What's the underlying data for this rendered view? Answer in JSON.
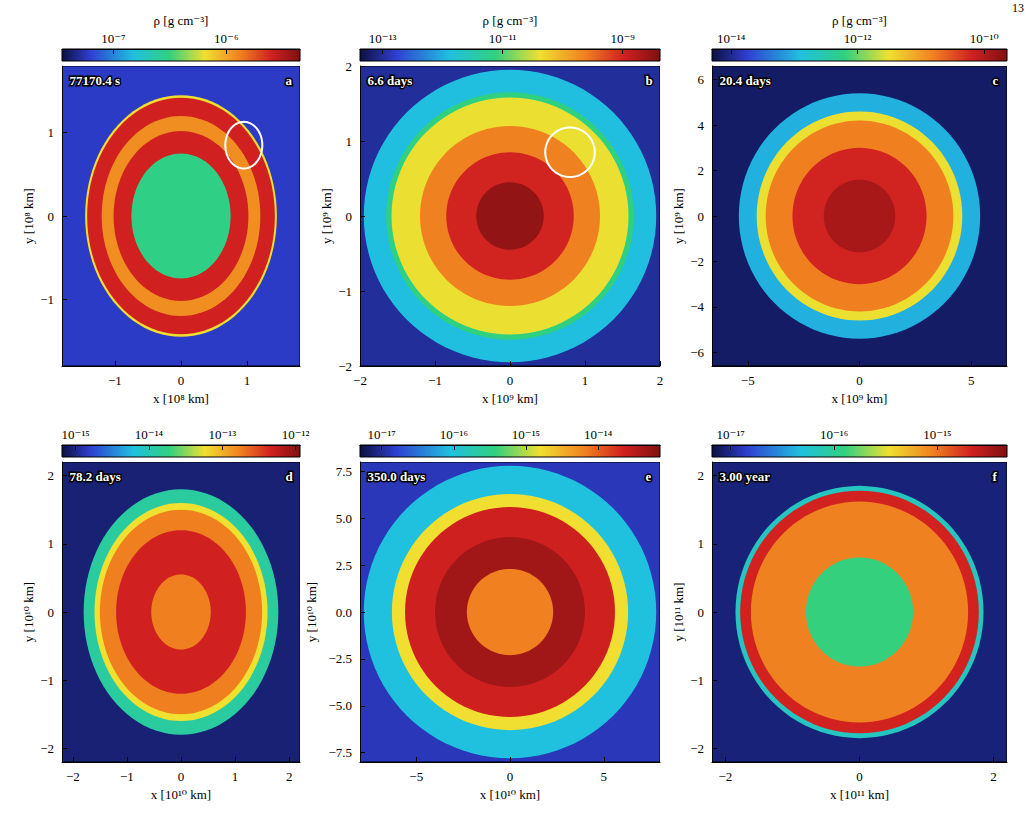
{
  "page_number": "13",
  "chart_data": [
    {
      "type": "density_map",
      "panel": "a",
      "time": "77170.4 s",
      "x_label": "x [10⁸ km]",
      "y_label": "y [10⁸ km]",
      "xlim": [
        -1.8,
        1.8
      ],
      "ylim": [
        -1.8,
        1.8
      ],
      "xticks": [
        {
          "value": -1,
          "label": "−1"
        },
        0,
        1
      ],
      "yticks": [
        {
          "value": -1,
          "label": "−1"
        },
        0,
        1
      ],
      "colorbar": {
        "label": "ρ [g cm⁻³]",
        "log": true,
        "range": [
          3.5e-08,
          4.5e-06
        ],
        "ticks": [
          {
            "value": 1e-07,
            "label": "10⁻⁷"
          },
          {
            "value": 1e-06,
            "label": "10⁻⁶"
          }
        ]
      },
      "ambient_density": 6e-08,
      "shells": {
        "radius": [
          1.45,
          1.42,
          1.2,
          1.02,
          0.75
        ],
        "density": [
          6.5e-07,
          2.5e-06,
          1.2e-06,
          2.5e-06,
          3e-07
        ]
      },
      "highlight_circle": {
        "center": [
          0.95,
          0.85
        ],
        "radius": 0.28
      }
    },
    {
      "type": "density_map",
      "panel": "b",
      "time": "6.6 days",
      "x_label": "x [10⁹ km]",
      "y_label": "y [10⁹ km]",
      "xlim": [
        -2,
        2
      ],
      "ylim": [
        -2,
        2
      ],
      "xticks": [
        {
          "value": -2,
          "label": "−2"
        },
        {
          "value": -1,
          "label": "−1"
        },
        0,
        1,
        2
      ],
      "yticks": [
        {
          "value": -2,
          "label": "−2"
        },
        {
          "value": -1,
          "label": "−1"
        },
        0,
        1,
        2
      ],
      "colorbar": {
        "label": "ρ [g cm⁻³]",
        "log": true,
        "range": [
          4.2e-14,
          4.2e-09
        ],
        "ticks": [
          {
            "value": 1e-13,
            "label": "10⁻¹³"
          },
          {
            "value": 1e-11,
            "label": "10⁻¹¹"
          },
          {
            "value": 1e-09,
            "label": "10⁻⁹"
          }
        ]
      },
      "ambient_density": 1e-13,
      "shells": {
        "radius": [
          1.95,
          1.65,
          1.58,
          1.2,
          0.85,
          0.45
        ],
        "density": [
          1.3e-12,
          7.4e-12,
          4e-11,
          2.3e-10,
          1e-09,
          3e-09
        ]
      },
      "highlight_circle": {
        "center": [
          0.8,
          0.85
        ],
        "radius": 0.33
      }
    },
    {
      "type": "density_map",
      "panel": "c",
      "time": "20.4 days",
      "x_label": "x [10⁹ km]",
      "y_label": "y [10⁹ km]",
      "xlim": [
        -6.6,
        6.6
      ],
      "ylim": [
        -6.6,
        6.6
      ],
      "xticks": [
        {
          "value": -5,
          "label": "−5"
        },
        0,
        5
      ],
      "yticks": [
        {
          "value": -6,
          "label": "−6"
        },
        {
          "value": -4,
          "label": "−4"
        },
        {
          "value": -2,
          "label": "−2"
        },
        0,
        2,
        4,
        6
      ],
      "colorbar": {
        "label": "ρ [g cm⁻³]",
        "log": true,
        "range": [
          5e-15,
          2.3e-10
        ],
        "ticks": [
          {
            "value": 1e-14,
            "label": "10⁻¹⁴"
          },
          {
            "value": 1e-12,
            "label": "10⁻¹²"
          },
          {
            "value": 1e-10,
            "label": "10⁻¹⁰"
          }
        ]
      },
      "ambient_density": 7e-15,
      "shells": {
        "radius": [
          5.4,
          4.6,
          4.2,
          3.0,
          1.6
        ],
        "density": [
          1e-13,
          3e-12,
          1.6e-11,
          6e-11,
          1.2e-10
        ]
      }
    },
    {
      "type": "density_map",
      "panel": "d",
      "time": "78.2 days",
      "x_label": "x [10¹⁰ km]",
      "y_label": "y [10¹⁰ km]",
      "xlim": [
        -2.2,
        2.2
      ],
      "ylim": [
        -2.2,
        2.2
      ],
      "xticks": [
        {
          "value": -2,
          "label": "−2"
        },
        {
          "value": -1,
          "label": "−1"
        },
        0,
        1,
        2
      ],
      "yticks": [
        {
          "value": -2,
          "label": "−2"
        },
        {
          "value": -1,
          "label": "−1"
        },
        0,
        1,
        2
      ],
      "colorbar": {
        "log": true,
        "range": [
          6.5e-16,
          1.15e-12
        ],
        "ticks": [
          {
            "value": 1e-15,
            "label": "10⁻¹⁵"
          },
          {
            "value": 1e-14,
            "label": "10⁻¹⁴"
          },
          {
            "value": 1e-13,
            "label": "10⁻¹³"
          },
          {
            "value": 1e-12,
            "label": "10⁻¹²"
          }
        ]
      },
      "ambient_density": 9e-16,
      "shells": {
        "radius": [
          1.8,
          1.6,
          1.5,
          1.2,
          0.55
        ],
        "density": [
          1.3e-14,
          5.8e-14,
          1.8e-13,
          4.7e-13,
          1.8e-13
        ]
      }
    },
    {
      "type": "density_map",
      "panel": "e",
      "time": "350.0 days",
      "x_label": "x [10¹⁰ km]",
      "y_label": "y [10¹⁰ km]",
      "xlim": [
        -8,
        8
      ],
      "ylim": [
        -8,
        8
      ],
      "xticks": [
        {
          "value": -5,
          "label": "−5"
        },
        0,
        5
      ],
      "yticks": [
        {
          "value": -7.5,
          "label": "−7.5"
        },
        {
          "value": -5,
          "label": "−5.0"
        },
        {
          "value": -2.5,
          "label": "−2.5"
        },
        {
          "value": 0,
          "label": "0.0"
        },
        2.5,
        {
          "value": 5,
          "label": "5.0"
        },
        7.5
      ],
      "colorbar": {
        "log": true,
        "range": [
          5e-18,
          7.2e-14
        ],
        "ticks": [
          {
            "value": 1e-17,
            "label": "10⁻¹⁷"
          },
          {
            "value": 1e-16,
            "label": "10⁻¹⁶"
          },
          {
            "value": 1e-15,
            "label": "10⁻¹⁵"
          },
          {
            "value": 1e-14,
            "label": "10⁻¹⁴"
          }
        ]
      },
      "ambient_density": 1.3e-17,
      "shells": {
        "radius": [
          7.8,
          6.3,
          5.6,
          4.0,
          2.3
        ],
        "density": [
          9e-17,
          1.6e-15,
          2.3e-14,
          4.5e-14,
          6.6e-15
        ]
      }
    },
    {
      "type": "density_map",
      "panel": "f",
      "time": "3.00 year",
      "x_label": "x [10¹¹ km]",
      "y_label": "y [10¹¹ km]",
      "xlim": [
        -2.2,
        2.2
      ],
      "ylim": [
        -2.2,
        2.2
      ],
      "xticks": [
        {
          "value": -2,
          "label": "−2"
        },
        0,
        2
      ],
      "yticks": [
        {
          "value": -2,
          "label": "−2"
        },
        {
          "value": -1,
          "label": "−1"
        },
        0,
        1,
        2
      ],
      "colorbar": {
        "log": true,
        "range": [
          6.6e-18,
          4.7e-15
        ],
        "ticks": [
          {
            "value": 1e-17,
            "label": "10⁻¹⁷"
          },
          {
            "value": 1e-16,
            "label": "10⁻¹⁶"
          },
          {
            "value": 1e-15,
            "label": "10⁻¹⁵"
          }
        ]
      },
      "ambient_density": 9e-18,
      "shells": {
        "radius": [
          1.85,
          1.78,
          1.62,
          0.8
        ],
        "density": [
          6.6e-17,
          2.1e-15,
          9e-16,
          1.3e-16
        ]
      }
    }
  ]
}
